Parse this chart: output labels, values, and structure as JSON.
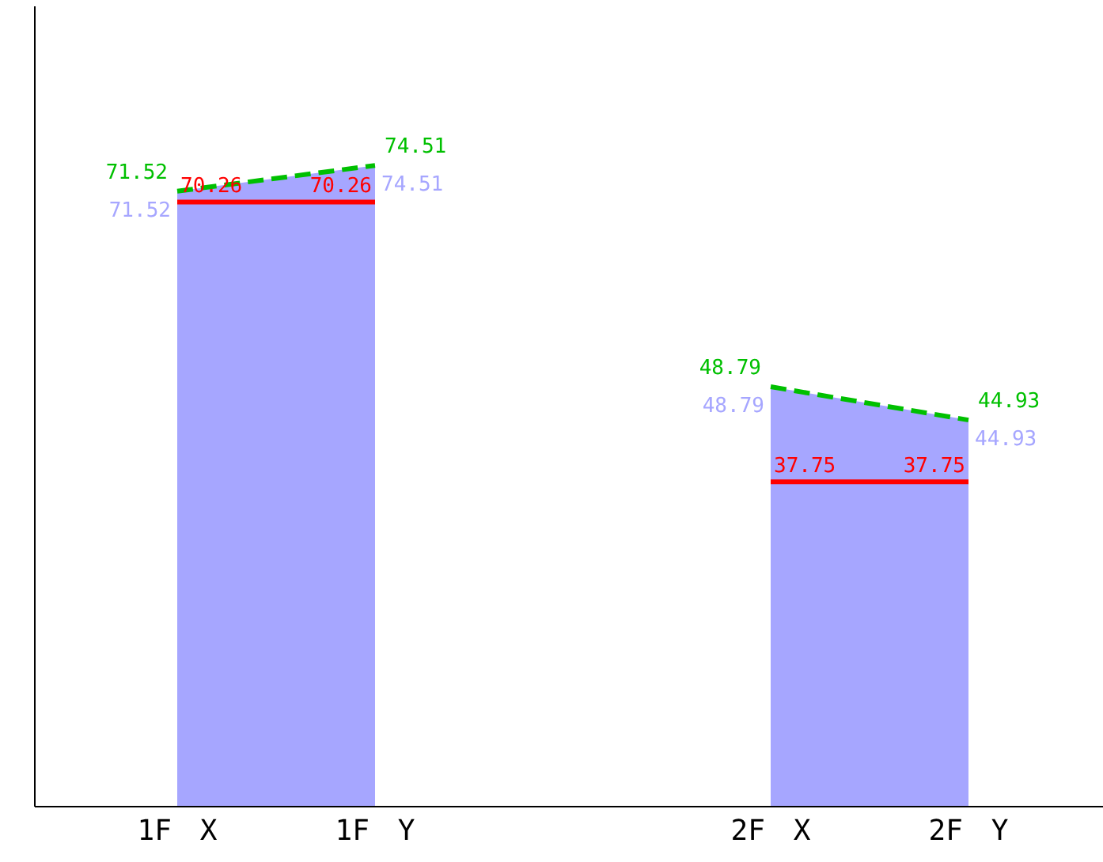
{
  "chart_data": {
    "type": "area",
    "categories": [
      "1F　X",
      "1F　Y",
      null,
      "2F　X",
      "2F　Y"
    ],
    "ylim": [
      0,
      93
    ],
    "tick_labels": "x",
    "grid": false,
    "legend": false,
    "data_labels": true,
    "series": [
      {
        "color": "#a6a6ff",
        "values": [
          71.52,
          74.51,
          null,
          48.79,
          44.93
        ]
      },
      {
        "type": "line",
        "color": "#00c000",
        "line_style": "dashed",
        "values": [
          71.52,
          74.51,
          null,
          48.79,
          44.93
        ]
      },
      {
        "type": "line",
        "color": "#ff0000",
        "line_style": "solid",
        "values": [
          70.26,
          70.26,
          null,
          37.75,
          37.75
        ]
      }
    ]
  }
}
